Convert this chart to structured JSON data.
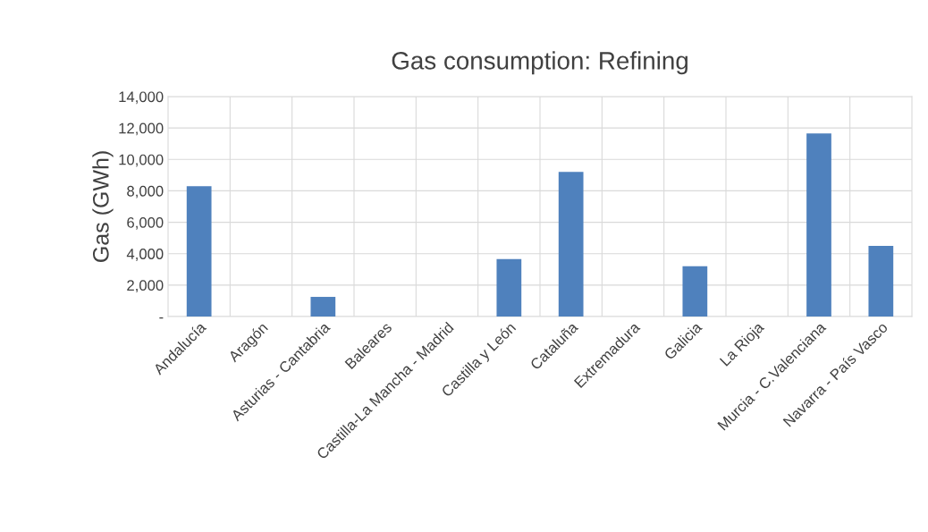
{
  "chart_data": {
    "type": "bar",
    "title": "Gas consumption: Refining",
    "ylabel": "Gas (GWh)",
    "categories": [
      "Andalucía",
      "Aragón",
      "Asturias - Cantabria",
      "Baleares",
      "Castilla-La Mancha - Madrid",
      "Castilla y León",
      "Cataluña",
      "Extremadura",
      "Galicia",
      "La Rioja",
      "Murcia - C.Valenciana",
      "Navarra - País Vasco"
    ],
    "values": [
      8300,
      0,
      1250,
      0,
      0,
      3650,
      9200,
      0,
      3200,
      0,
      11650,
      4500
    ],
    "color": "#4f81bd",
    "ylim": [
      0,
      14000
    ],
    "yticks": [
      {
        "value": 0,
        "label": "-"
      },
      {
        "value": 2000,
        "label": "2,000"
      },
      {
        "value": 4000,
        "label": "4,000"
      },
      {
        "value": 6000,
        "label": "6,000"
      },
      {
        "value": 8000,
        "label": "8,000"
      },
      {
        "value": 10000,
        "label": "10,000"
      },
      {
        "value": 12000,
        "label": "12,000"
      },
      {
        "value": 14000,
        "label": "14,000"
      }
    ],
    "grid": true
  }
}
